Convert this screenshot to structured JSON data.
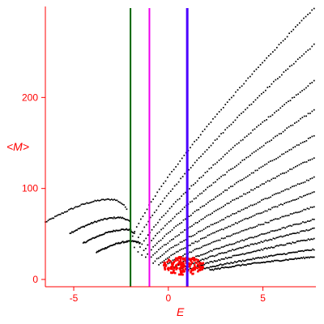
{
  "chart_data": {
    "type": "scatter",
    "title": "",
    "xlabel": "E",
    "ylabel": "<M>",
    "xlim": [
      -6.5,
      7.8
    ],
    "ylim": [
      -8,
      300
    ],
    "x_ticks": [
      -5,
      0,
      5
    ],
    "x_tick_labels": [
      "-5",
      "0",
      "5"
    ],
    "y_ticks": [
      0,
      100,
      200
    ],
    "y_tick_labels": [
      "0",
      "100",
      "200"
    ],
    "colors": {
      "axis": "#ff0000",
      "points": "#000000",
      "highlight": "#ff0000"
    },
    "vertical_lines": [
      {
        "x": -2.0,
        "color": "#006400"
      },
      {
        "x": -1.0,
        "color": "#ee00ee"
      },
      {
        "x": 1.0,
        "color": "#4b00ff"
      }
    ],
    "branches": [
      {
        "x_start": -6.5,
        "x_peak": -3.0,
        "x_end": -2.2,
        "y_start": 63,
        "y_peak": 88,
        "y_end": 78,
        "shape": "cap"
      },
      {
        "x_start": -5.2,
        "x_peak": -2.6,
        "x_end": -2.0,
        "y_start": 51,
        "y_peak": 68,
        "y_end": 63,
        "shape": "cap"
      },
      {
        "x_start": -4.5,
        "x_peak": -2.2,
        "x_end": -1.8,
        "y_start": 40,
        "y_peak": 55,
        "y_end": 50,
        "shape": "cap"
      },
      {
        "x_start": -3.8,
        "x_peak": -1.9,
        "x_end": -1.5,
        "y_start": 30,
        "y_peak": 42,
        "y_end": 40,
        "shape": "cap"
      },
      {
        "x_start": -2.0,
        "x_end": 7.7,
        "y_start": 40,
        "y_end": 298,
        "shape": "rise"
      },
      {
        "x_start": -1.8,
        "x_end": 7.7,
        "y_start": 35,
        "y_end": 258,
        "shape": "rise"
      },
      {
        "x_start": -1.6,
        "x_end": 7.7,
        "y_start": 30,
        "y_end": 218,
        "shape": "rise"
      },
      {
        "x_start": -1.4,
        "x_end": 7.7,
        "y_start": 27,
        "y_end": 186,
        "shape": "rise"
      },
      {
        "x_start": -1.2,
        "x_end": 7.7,
        "y_start": 24,
        "y_end": 158,
        "shape": "rise"
      },
      {
        "x_start": -1.0,
        "x_end": 7.7,
        "y_start": 21,
        "y_end": 134,
        "shape": "rise"
      },
      {
        "x_start": -0.8,
        "x_end": 7.7,
        "y_start": 18,
        "y_end": 112,
        "shape": "rise"
      },
      {
        "x_start": -0.5,
        "x_end": 7.7,
        "y_start": 16,
        "y_end": 96,
        "shape": "rise"
      },
      {
        "x_start": -0.2,
        "x_end": 7.7,
        "y_start": 14,
        "y_end": 80,
        "shape": "rise"
      },
      {
        "x_start": 0.2,
        "x_end": 7.7,
        "y_start": 12,
        "y_end": 66,
        "shape": "rise"
      },
      {
        "x_start": 0.6,
        "x_end": 7.7,
        "y_start": 11,
        "y_end": 56,
        "shape": "rise"
      },
      {
        "x_start": 1.0,
        "x_end": 7.7,
        "y_start": 10,
        "y_end": 45,
        "shape": "rise"
      },
      {
        "x_start": 1.6,
        "x_end": 7.7,
        "y_start": 10,
        "y_end": 33,
        "shape": "rise"
      },
      {
        "x_start": 2.2,
        "x_end": 7.7,
        "y_start": 10,
        "y_end": 25,
        "shape": "rise"
      }
    ],
    "highlight_cluster": {
      "x_center": 0.8,
      "y_center": 15,
      "x_spread": 1.1,
      "y_spread": 10
    }
  }
}
